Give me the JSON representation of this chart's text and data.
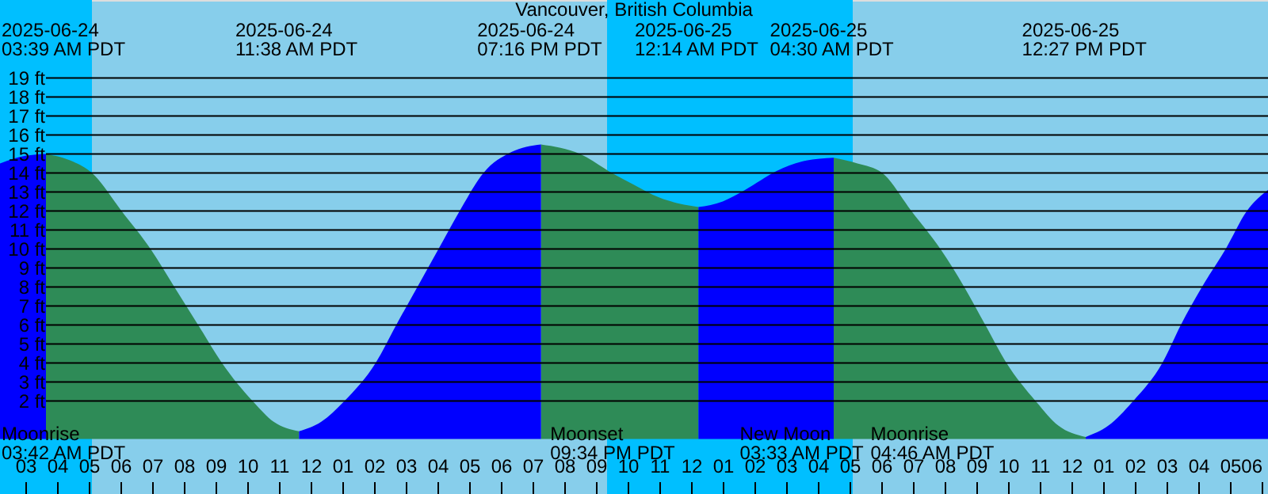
{
  "chart_data": {
    "type": "area",
    "title": "Vancouver, British Columbia",
    "x": [
      "2025-06-24T02:12",
      "2025-06-24T03:00",
      "2025-06-24T03:39",
      "2025-06-24T04:30",
      "2025-06-24T05:06",
      "2025-06-24T06:02",
      "2025-06-24T06:57",
      "2025-06-24T07:42",
      "2025-06-24T08:27",
      "2025-06-24T09:12",
      "2025-06-24T10:10",
      "2025-06-24T10:50",
      "2025-06-24T11:38",
      "2025-06-24T12:20",
      "2025-06-24T13:04",
      "2025-06-24T14:03",
      "2025-06-24T14:42",
      "2025-06-24T15:22",
      "2025-06-24T16:02",
      "2025-06-24T16:42",
      "2025-06-24T17:27",
      "2025-06-24T18:20",
      "2025-06-24T19:16",
      "2025-06-24T20:30",
      "2025-06-24T21:30",
      "2025-06-24T22:10",
      "2025-06-24T23:00",
      "2025-06-25T00:14",
      "2025-06-25T01:00",
      "2025-06-25T01:42",
      "2025-06-25T02:42",
      "2025-06-25T03:30",
      "2025-06-25T04:30",
      "2025-06-25T05:15",
      "2025-06-25T06:02",
      "2025-06-25T06:57",
      "2025-06-25T07:52",
      "2025-06-25T08:37",
      "2025-06-25T09:17",
      "2025-06-25T09:57",
      "2025-06-25T10:52",
      "2025-06-25T11:35",
      "2025-06-25T12:27",
      "2025-06-25T13:10",
      "2025-06-25T13:57",
      "2025-06-25T14:52",
      "2025-06-25T15:27",
      "2025-06-25T16:07",
      "2025-06-25T16:52",
      "2025-06-25T17:32",
      "2025-06-25T18:12"
    ],
    "series": [
      {
        "color": "#2e8b57",
        "values": [
          null,
          null,
          15.0,
          14.6,
          14.0,
          12.0,
          10.0,
          8.0,
          6.0,
          4.0,
          2.0,
          0.9,
          0.4,
          null,
          null,
          null,
          null,
          null,
          null,
          null,
          null,
          null,
          15.5,
          15.0,
          14.0,
          13.4,
          12.7,
          12.2,
          null,
          null,
          null,
          null,
          14.8,
          14.5,
          14.0,
          12.0,
          10.0,
          8.0,
          6.0,
          4.0,
          2.0,
          0.7,
          0.1,
          null,
          null,
          null,
          null,
          null,
          null,
          null,
          null
        ]
      },
      {
        "color": "#0000ff",
        "values": [
          14.5,
          14.9,
          15.0,
          null,
          null,
          null,
          null,
          null,
          null,
          null,
          null,
          null,
          0.4,
          0.9,
          2.0,
          4.0,
          6.0,
          8.0,
          10.0,
          12.0,
          14.0,
          15.1,
          15.5,
          null,
          null,
          null,
          null,
          12.2,
          12.5,
          13.1,
          14.1,
          14.6,
          14.8,
          null,
          null,
          null,
          null,
          null,
          null,
          null,
          null,
          null,
          0.1,
          0.7,
          2.0,
          4.0,
          6.0,
          8.0,
          10.0,
          12.0,
          13.1
        ]
      }
    ],
    "xlim": [
      "2025-06-24T02:12",
      "2025-06-25T18:12"
    ],
    "xticks": [
      {
        "value": "2025-06-24T03:00",
        "label": "03"
      },
      {
        "value": "2025-06-24T04:00",
        "label": "04"
      },
      {
        "value": "2025-06-24T05:00",
        "label": "05"
      },
      {
        "value": "2025-06-24T06:00",
        "label": "06"
      },
      {
        "value": "2025-06-24T07:00",
        "label": "07"
      },
      {
        "value": "2025-06-24T08:00",
        "label": "08"
      },
      {
        "value": "2025-06-24T09:00",
        "label": "09"
      },
      {
        "value": "2025-06-24T10:00",
        "label": "10"
      },
      {
        "value": "2025-06-24T11:00",
        "label": "11"
      },
      {
        "value": "2025-06-24T12:00",
        "label": "12"
      },
      {
        "value": "2025-06-24T13:00",
        "label": "01"
      },
      {
        "value": "2025-06-24T14:00",
        "label": "02"
      },
      {
        "value": "2025-06-24T15:00",
        "label": "03"
      },
      {
        "value": "2025-06-24T16:00",
        "label": "04"
      },
      {
        "value": "2025-06-24T17:00",
        "label": "05"
      },
      {
        "value": "2025-06-24T18:00",
        "label": "06"
      },
      {
        "value": "2025-06-24T19:00",
        "label": "07"
      },
      {
        "value": "2025-06-24T20:00",
        "label": "08"
      },
      {
        "value": "2025-06-24T21:00",
        "label": "09"
      },
      {
        "value": "2025-06-24T22:00",
        "label": "10"
      },
      {
        "value": "2025-06-24T23:00",
        "label": "11"
      },
      {
        "value": "2025-06-25T00:00",
        "label": "12"
      },
      {
        "value": "2025-06-25T01:00",
        "label": "01"
      },
      {
        "value": "2025-06-25T02:00",
        "label": "02"
      },
      {
        "value": "2025-06-25T03:00",
        "label": "03"
      },
      {
        "value": "2025-06-25T04:00",
        "label": "04"
      },
      {
        "value": "2025-06-25T05:00",
        "label": "05"
      },
      {
        "value": "2025-06-25T06:00",
        "label": "06"
      },
      {
        "value": "2025-06-25T07:00",
        "label": "07"
      },
      {
        "value": "2025-06-25T08:00",
        "label": "08"
      },
      {
        "value": "2025-06-25T09:00",
        "label": "09"
      },
      {
        "value": "2025-06-25T10:00",
        "label": "10"
      },
      {
        "value": "2025-06-25T11:00",
        "label": "11"
      },
      {
        "value": "2025-06-25T12:00",
        "label": "12"
      },
      {
        "value": "2025-06-25T13:00",
        "label": "01"
      },
      {
        "value": "2025-06-25T14:00",
        "label": "02"
      },
      {
        "value": "2025-06-25T15:00",
        "label": "03"
      },
      {
        "value": "2025-06-25T16:00",
        "label": "04"
      },
      {
        "value": "2025-06-25T17:00",
        "label": "05"
      },
      {
        "value": "2025-06-25T18:00",
        "label": "06"
      }
    ],
    "ylim": [
      -2.9,
      23.1
    ],
    "yticks": [
      {
        "value": 2,
        "label": "2 ft"
      },
      {
        "value": 3,
        "label": "3 ft"
      },
      {
        "value": 4,
        "label": "4 ft"
      },
      {
        "value": 5,
        "label": "5 ft"
      },
      {
        "value": 6,
        "label": "6 ft"
      },
      {
        "value": 7,
        "label": "7 ft"
      },
      {
        "value": 8,
        "label": "8 ft"
      },
      {
        "value": 9,
        "label": "9 ft"
      },
      {
        "value": 10,
        "label": "10 ft"
      },
      {
        "value": 11,
        "label": "11 ft"
      },
      {
        "value": 12,
        "label": "12 ft"
      },
      {
        "value": 13,
        "label": "13 ft"
      },
      {
        "value": 14,
        "label": "14 ft"
      },
      {
        "value": 15,
        "label": "15 ft"
      },
      {
        "value": 16,
        "label": "16 ft"
      },
      {
        "value": 17,
        "label": "17 ft"
      },
      {
        "value": 18,
        "label": "18 ft"
      },
      {
        "value": 19,
        "label": "19 ft"
      }
    ],
    "grid": "y",
    "bands": [
      {
        "axis": "x",
        "from": "2025-06-24T02:12",
        "to": "2025-06-24T05:06",
        "color": "#00bfff"
      },
      {
        "axis": "x",
        "from": "2025-06-24T21:21",
        "to": "2025-06-25T05:06",
        "color": "#00bfff"
      }
    ],
    "annotations": [
      "2025-06-24\n03:39 AM PDT",
      "2025-06-24\n11:38 AM PDT",
      "2025-06-24\n07:16 PM PDT",
      "2025-06-25\n12:14 AM PDT",
      "2025-06-25\n04:30 AM PDT",
      "2025-06-25\n12:27 PM PDT",
      {
        "text": "Moonrise\n03:42 AM PDT",
        "x": "2025-06-24T03:42"
      },
      {
        "text": "Moonset\n09:34 PM PDT",
        "x": "2025-06-24T21:34"
      },
      {
        "text": "New Moon\n03:33 AM PDT",
        "x": "2025-06-25T03:33"
      },
      {
        "text": "Moonrise\n04:46 AM PDT",
        "x": "2025-06-25T04:46"
      }
    ]
  }
}
